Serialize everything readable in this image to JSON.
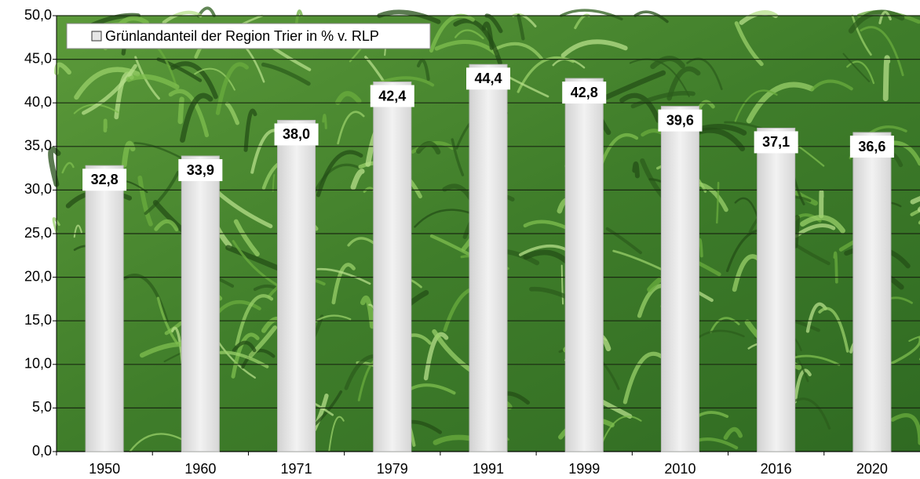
{
  "chart_data": {
    "type": "bar",
    "categories": [
      "1950",
      "1960",
      "1971",
      "1979",
      "1991",
      "1999",
      "2010",
      "2016",
      "2020"
    ],
    "series": [
      {
        "name": "Grünlandanteil der Region Trier in % v. RLP",
        "color": "#e6e6e6",
        "values": [
          32.8,
          33.9,
          38.0,
          42.4,
          44.4,
          42.8,
          39.6,
          37.1,
          36.6
        ],
        "value_labels": [
          "32,8",
          "33,9",
          "38,0",
          "42,4",
          "44,4",
          "42,8",
          "39,6",
          "37,1",
          "36,6"
        ]
      }
    ],
    "ylim": [
      0,
      50
    ],
    "yticks": [
      {
        "value": 0,
        "label": "0,0"
      },
      {
        "value": 5,
        "label": "5,0"
      },
      {
        "value": 10,
        "label": "10,0"
      },
      {
        "value": 15,
        "label": "15,0"
      },
      {
        "value": 20,
        "label": "20,0"
      },
      {
        "value": 25,
        "label": "25,0"
      },
      {
        "value": 30,
        "label": "30,0"
      },
      {
        "value": 35,
        "label": "35,0"
      },
      {
        "value": 40,
        "label": "40,0"
      },
      {
        "value": 45,
        "label": "45,0"
      },
      {
        "value": 50,
        "label": "50,0"
      }
    ],
    "grid": true,
    "legend": "top-left"
  }
}
